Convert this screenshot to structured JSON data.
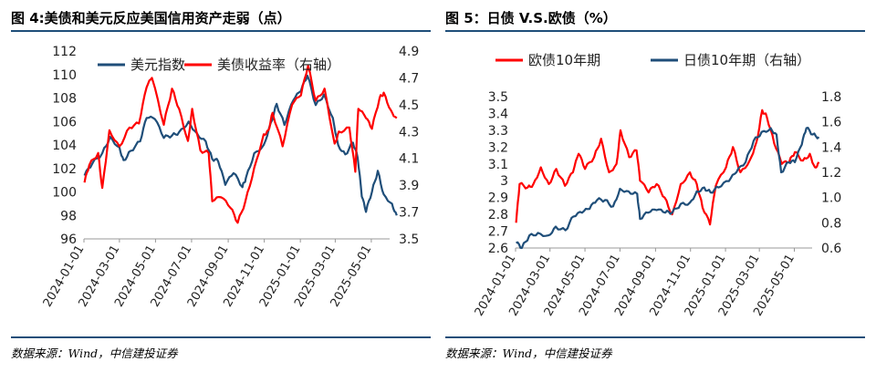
{
  "figures": [
    {
      "title": "图 4:美债和美元反应美国信用资产走弱（点）",
      "source": "数据来源：Wind，中信建投证券"
    },
    {
      "title": "图 5：日债 V.S.欧债（%）",
      "source": "数据来源：Wind，中信建投证券"
    }
  ],
  "chart_data": [
    {
      "type": "line",
      "title": "图 4:美债和美元反应美国信用资产走弱（点）",
      "x_ticks": [
        "2024-01-01",
        "2024-03-01",
        "2024-05-01",
        "2024-07-01",
        "2024-09-01",
        "2024-11-01",
        "2025-01-01",
        "2025-03-01",
        "2025-05-01"
      ],
      "x_range": [
        "2024-01-01",
        "2025-06-01"
      ],
      "legend_position": "top",
      "y_left": {
        "range": [
          96,
          112
        ],
        "ticks": [
          96,
          98,
          100,
          102,
          104,
          106,
          108,
          110,
          112
        ]
      },
      "y_right": {
        "range": [
          3.5,
          4.9
        ],
        "ticks": [
          3.5,
          3.7,
          3.9,
          4.1,
          4.3,
          4.5,
          4.7,
          4.9
        ]
      },
      "series": [
        {
          "name": "美元指数",
          "color": "#1f4e79",
          "axis": "left",
          "points": [
            [
              "2024-01-02",
              101.4
            ],
            [
              "2024-01-15",
              102.4
            ],
            [
              "2024-02-01",
              103.3
            ],
            [
              "2024-02-14",
              104.7
            ],
            [
              "2024-03-01",
              103.8
            ],
            [
              "2024-03-08",
              102.7
            ],
            [
              "2024-03-20",
              103.5
            ],
            [
              "2024-04-05",
              104.3
            ],
            [
              "2024-04-16",
              106.3
            ],
            [
              "2024-04-30",
              106.2
            ],
            [
              "2024-05-15",
              104.6
            ],
            [
              "2024-05-29",
              104.8
            ],
            [
              "2024-06-10",
              105.1
            ],
            [
              "2024-06-26",
              106.0
            ],
            [
              "2024-07-10",
              105.0
            ],
            [
              "2024-07-25",
              104.3
            ],
            [
              "2024-08-05",
              102.8
            ],
            [
              "2024-08-15",
              102.6
            ],
            [
              "2024-08-27",
              100.6
            ],
            [
              "2024-09-10",
              101.6
            ],
            [
              "2024-09-25",
              100.4
            ],
            [
              "2024-10-01",
              101.2
            ],
            [
              "2024-10-15",
              103.3
            ],
            [
              "2024-10-31",
              104.0
            ],
            [
              "2024-11-12",
              105.9
            ],
            [
              "2024-11-22",
              107.5
            ],
            [
              "2024-12-05",
              105.7
            ],
            [
              "2024-12-20",
              107.8
            ],
            [
              "2025-01-02",
              108.6
            ],
            [
              "2025-01-13",
              109.9
            ],
            [
              "2025-01-27",
              107.4
            ],
            [
              "2025-02-10",
              108.3
            ],
            [
              "2025-02-25",
              106.3
            ],
            [
              "2025-03-06",
              104.0
            ],
            [
              "2025-03-18",
              103.2
            ],
            [
              "2025-03-31",
              104.2
            ],
            [
              "2025-04-08",
              102.9
            ],
            [
              "2025-04-15",
              99.6
            ],
            [
              "2025-04-22",
              98.3
            ],
            [
              "2025-05-02",
              100.0
            ],
            [
              "2025-05-12",
              101.8
            ],
            [
              "2025-05-22",
              99.8
            ],
            [
              "2025-06-05",
              99.0
            ],
            [
              "2025-06-13",
              98.0
            ]
          ]
        },
        {
          "name": "美债收益率（右轴）",
          "color": "#ff0000",
          "axis": "right",
          "points": [
            [
              "2024-01-02",
              3.92
            ],
            [
              "2024-01-10",
              4.05
            ],
            [
              "2024-01-25",
              4.14
            ],
            [
              "2024-02-01",
              3.88
            ],
            [
              "2024-02-13",
              4.31
            ],
            [
              "2024-03-01",
              4.19
            ],
            [
              "2024-03-18",
              4.33
            ],
            [
              "2024-04-03",
              4.36
            ],
            [
              "2024-04-16",
              4.63
            ],
            [
              "2024-04-25",
              4.7
            ],
            [
              "2024-05-15",
              4.35
            ],
            [
              "2024-05-29",
              4.62
            ],
            [
              "2024-06-10",
              4.47
            ],
            [
              "2024-06-25",
              4.23
            ],
            [
              "2024-07-02",
              4.47
            ],
            [
              "2024-07-16",
              4.16
            ],
            [
              "2024-07-30",
              4.14
            ],
            [
              "2024-08-05",
              3.78
            ],
            [
              "2024-08-20",
              3.81
            ],
            [
              "2024-09-05",
              3.73
            ],
            [
              "2024-09-17",
              3.62
            ],
            [
              "2024-09-30",
              3.78
            ],
            [
              "2024-10-15",
              4.03
            ],
            [
              "2024-10-31",
              4.28
            ],
            [
              "2024-11-08",
              4.31
            ],
            [
              "2024-11-15",
              4.44
            ],
            [
              "2024-12-02",
              4.19
            ],
            [
              "2024-12-18",
              4.5
            ],
            [
              "2025-01-02",
              4.57
            ],
            [
              "2025-01-14",
              4.79
            ],
            [
              "2025-01-27",
              4.53
            ],
            [
              "2025-02-11",
              4.62
            ],
            [
              "2025-02-28",
              4.21
            ],
            [
              "2025-03-07",
              4.3
            ],
            [
              "2025-03-25",
              4.33
            ],
            [
              "2025-04-04",
              4.0
            ],
            [
              "2025-04-09",
              4.47
            ],
            [
              "2025-04-22",
              4.4
            ],
            [
              "2025-05-02",
              4.32
            ],
            [
              "2025-05-15",
              4.55
            ],
            [
              "2025-05-22",
              4.59
            ],
            [
              "2025-06-03",
              4.46
            ],
            [
              "2025-06-13",
              4.4
            ]
          ]
        }
      ]
    },
    {
      "type": "line",
      "title": "图 5：日债 V.S.欧债（%）",
      "x_ticks": [
        "2024-01-01",
        "2024-03-01",
        "2024-05-01",
        "2024-07-01",
        "2024-09-01",
        "2024-11-01",
        "2025-01-01",
        "2025-03-01",
        "2025-05-01"
      ],
      "x_range": [
        "2024-01-01",
        "2025-06-01"
      ],
      "legend_position": "top",
      "y_left": {
        "range": [
          2.6,
          3.5
        ],
        "ticks": [
          2.6,
          2.7,
          2.8,
          2.9,
          3.0,
          3.1,
          3.2,
          3.3,
          3.4,
          3.5
        ]
      },
      "y_right": {
        "range": [
          0.6,
          1.8
        ],
        "ticks": [
          0.6,
          0.8,
          1.0,
          1.2,
          1.4,
          1.6,
          1.8
        ]
      },
      "series": [
        {
          "name": "欧债10年期",
          "color": "#ff0000",
          "axis": "left",
          "points": [
            [
              "2024-01-02",
              2.75
            ],
            [
              "2024-01-08",
              2.98
            ],
            [
              "2024-01-22",
              2.96
            ],
            [
              "2024-02-01",
              2.98
            ],
            [
              "2024-02-14",
              3.08
            ],
            [
              "2024-02-28",
              2.98
            ],
            [
              "2024-03-12",
              3.07
            ],
            [
              "2024-03-27",
              2.97
            ],
            [
              "2024-04-10",
              3.05
            ],
            [
              "2024-04-20",
              3.16
            ],
            [
              "2024-05-01",
              3.07
            ],
            [
              "2024-05-17",
              3.14
            ],
            [
              "2024-05-29",
              3.25
            ],
            [
              "2024-06-12",
              3.05
            ],
            [
              "2024-06-25",
              3.1
            ],
            [
              "2024-07-02",
              3.3
            ],
            [
              "2024-07-17",
              3.14
            ],
            [
              "2024-07-30",
              3.18
            ],
            [
              "2024-08-05",
              3.0
            ],
            [
              "2024-08-20",
              2.93
            ],
            [
              "2024-09-03",
              2.98
            ],
            [
              "2024-09-17",
              2.9
            ],
            [
              "2024-09-30",
              2.8
            ],
            [
              "2024-10-15",
              2.98
            ],
            [
              "2024-10-31",
              3.05
            ],
            [
              "2024-11-12",
              2.98
            ],
            [
              "2024-11-22",
              2.84
            ],
            [
              "2024-12-05",
              2.74
            ],
            [
              "2024-12-15",
              2.97
            ],
            [
              "2025-01-02",
              3.08
            ],
            [
              "2025-01-14",
              3.2
            ],
            [
              "2025-01-27",
              3.05
            ],
            [
              "2025-02-12",
              3.12
            ],
            [
              "2025-02-24",
              3.23
            ],
            [
              "2025-03-06",
              3.42
            ],
            [
              "2025-03-14",
              3.38
            ],
            [
              "2025-03-27",
              3.22
            ],
            [
              "2025-04-09",
              3.1
            ],
            [
              "2025-04-22",
              3.11
            ],
            [
              "2025-05-02",
              3.17
            ],
            [
              "2025-05-16",
              3.12
            ],
            [
              "2025-05-28",
              3.16
            ],
            [
              "2025-06-06",
              3.08
            ],
            [
              "2025-06-13",
              3.11
            ]
          ]
        },
        {
          "name": "日债10年期（右轴）",
          "color": "#1f4e79",
          "axis": "right",
          "points": [
            [
              "2024-01-02",
              0.64
            ],
            [
              "2024-01-12",
              0.6
            ],
            [
              "2024-01-25",
              0.7
            ],
            [
              "2024-02-09",
              0.72
            ],
            [
              "2024-02-27",
              0.7
            ],
            [
              "2024-03-11",
              0.77
            ],
            [
              "2024-03-28",
              0.74
            ],
            [
              "2024-04-11",
              0.85
            ],
            [
              "2024-04-26",
              0.88
            ],
            [
              "2024-05-09",
              0.91
            ],
            [
              "2024-05-22",
              0.98
            ],
            [
              "2024-06-05",
              0.98
            ],
            [
              "2024-06-19",
              0.93
            ],
            [
              "2024-07-01",
              1.07
            ],
            [
              "2024-07-16",
              1.05
            ],
            [
              "2024-07-31",
              1.03
            ],
            [
              "2024-08-05",
              0.83
            ],
            [
              "2024-08-19",
              0.88
            ],
            [
              "2024-09-03",
              0.9
            ],
            [
              "2024-09-18",
              0.88
            ],
            [
              "2024-09-30",
              0.88
            ],
            [
              "2024-10-15",
              0.95
            ],
            [
              "2024-10-31",
              0.96
            ],
            [
              "2024-11-12",
              1.05
            ],
            [
              "2024-11-25",
              1.08
            ],
            [
              "2024-12-06",
              1.04
            ],
            [
              "2024-12-20",
              1.08
            ],
            [
              "2025-01-07",
              1.13
            ],
            [
              "2025-01-20",
              1.2
            ],
            [
              "2025-02-05",
              1.28
            ],
            [
              "2025-02-19",
              1.45
            ],
            [
              "2025-03-05",
              1.52
            ],
            [
              "2025-03-21",
              1.55
            ],
            [
              "2025-03-31",
              1.5
            ],
            [
              "2025-04-08",
              1.2
            ],
            [
              "2025-04-21",
              1.28
            ],
            [
              "2025-05-02",
              1.28
            ],
            [
              "2025-05-14",
              1.42
            ],
            [
              "2025-05-22",
              1.55
            ],
            [
              "2025-06-02",
              1.5
            ],
            [
              "2025-06-13",
              1.48
            ]
          ]
        }
      ]
    }
  ]
}
